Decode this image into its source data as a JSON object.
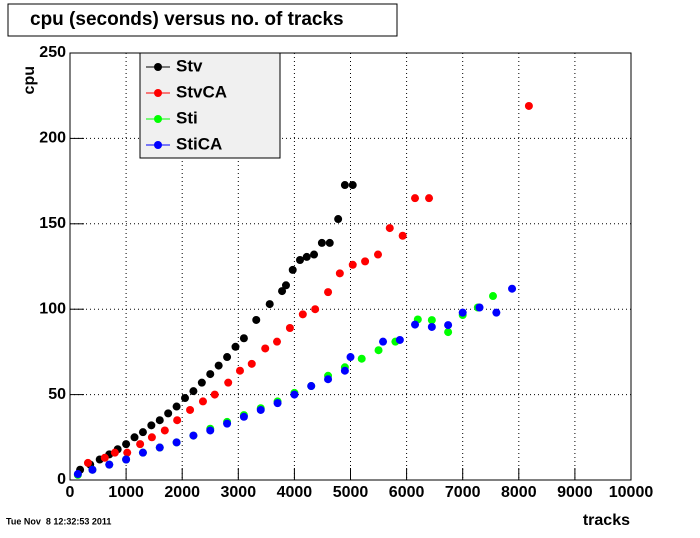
{
  "chart_data": {
    "type": "scatter",
    "title": "cpu (seconds) versus no. of tracks",
    "xlabel": "tracks",
    "ylabel": "cpu",
    "timestamp": "Tue Nov  8 12:32:53 2011",
    "xlim": [
      0,
      10000
    ],
    "ylim": [
      0,
      250
    ],
    "xticks": [
      0,
      1000,
      2000,
      3000,
      4000,
      5000,
      6000,
      7000,
      8000,
      9000,
      10000
    ],
    "yticks": [
      0,
      50,
      100,
      150,
      200,
      250
    ],
    "grid": true,
    "legend": "upper-left",
    "series": [
      {
        "name": "Stv",
        "color": "#000000",
        "x": [
          180,
          360,
          530,
          700,
          850,
          1000,
          1150,
          1300,
          1450,
          1600,
          1750,
          1900,
          2050,
          2200,
          2350,
          2500,
          2650,
          2800,
          2950,
          3100,
          3320,
          3560,
          3780,
          3850,
          3970,
          4100,
          4220,
          4350,
          4490,
          4630,
          4780,
          4900,
          5040
        ],
        "values": [
          6,
          9,
          12,
          15,
          18,
          21,
          25,
          28,
          32,
          35,
          39,
          43,
          48,
          52,
          57,
          62,
          67,
          72,
          78,
          83,
          93.7,
          103,
          110.6,
          114,
          123,
          128.8,
          130.6,
          132,
          138.8,
          138.8,
          152.8,
          172.7,
          172.7
        ]
      },
      {
        "name": "StvCA",
        "color": "#ff0000",
        "x": [
          320,
          620,
          800,
          1020,
          1250,
          1460,
          1690,
          1910,
          2140,
          2370,
          2580,
          2820,
          3030,
          3240,
          3480,
          3690,
          3920,
          4150,
          4370,
          4600,
          4810,
          5040,
          5260,
          5490,
          5700,
          5930,
          6150,
          6400,
          8180
        ],
        "values": [
          10,
          13,
          16,
          16,
          21,
          25,
          29,
          35,
          41,
          46,
          50,
          57,
          64,
          68,
          77,
          81,
          89,
          97,
          100,
          110,
          121,
          126,
          128,
          132,
          147.5,
          143,
          165,
          165,
          219
        ]
      },
      {
        "name": "Sti",
        "color": "#00ff00",
        "x": [
          140,
          400,
          700,
          1000,
          1300,
          1600,
          1900,
          2200,
          2500,
          2800,
          3100,
          3400,
          3700,
          4000,
          4300,
          4600,
          4900,
          5200,
          5500,
          5800,
          6200,
          6450,
          6740,
          7000,
          7270,
          7540
        ],
        "values": [
          3,
          6,
          9,
          12,
          16,
          19,
          22,
          26,
          30,
          34,
          38,
          42,
          46,
          51,
          55,
          61,
          66,
          71,
          76,
          81,
          94,
          93.6,
          86.6,
          96.6,
          101,
          107.7
        ]
      },
      {
        "name": "StiCA",
        "color": "#0000ff",
        "x": [
          140,
          400,
          700,
          1000,
          1300,
          1600,
          1900,
          2200,
          2500,
          2800,
          3100,
          3400,
          3700,
          4000,
          4300,
          4600,
          4900,
          5000,
          5580,
          5880,
          6150,
          6450,
          6740,
          7000,
          7300,
          7600,
          7880
        ],
        "values": [
          3.5,
          6,
          9,
          12,
          16,
          19,
          22,
          26,
          29,
          33,
          37,
          41,
          45,
          50,
          55,
          59,
          64,
          72,
          81,
          82,
          91,
          89.6,
          90.7,
          98,
          101,
          98,
          112
        ]
      }
    ]
  }
}
